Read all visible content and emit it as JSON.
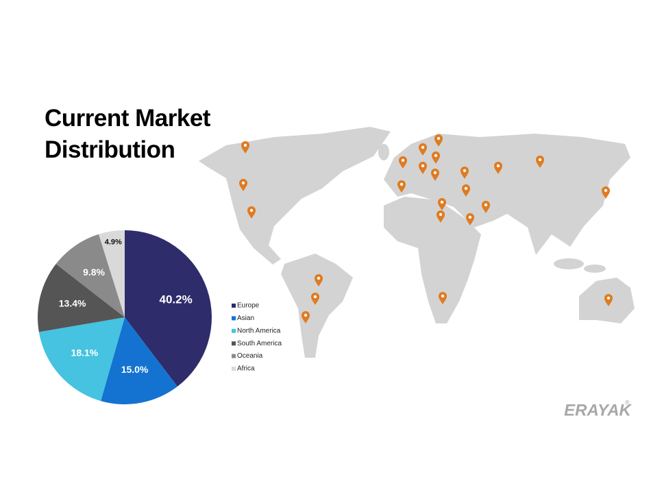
{
  "chart_data": {
    "type": "pie",
    "title": "Current Market Distribution",
    "categories": [
      "Europe",
      "Asian",
      "North America",
      "South America",
      "Oceania",
      "Africa"
    ],
    "values": [
      40.2,
      15.0,
      18.1,
      13.4,
      9.8,
      4.9
    ],
    "value_labels": [
      "40.2%",
      "15.0%",
      "18.1%",
      "13.4%",
      "9.8%",
      "4.9%"
    ],
    "colors": [
      "#2e2c6b",
      "#1473d1",
      "#45c3e0",
      "#555555",
      "#8a8a8a",
      "#d9d9d9"
    ],
    "legend": "right"
  },
  "brand": "ERAYAK",
  "brand_mark": "®"
}
